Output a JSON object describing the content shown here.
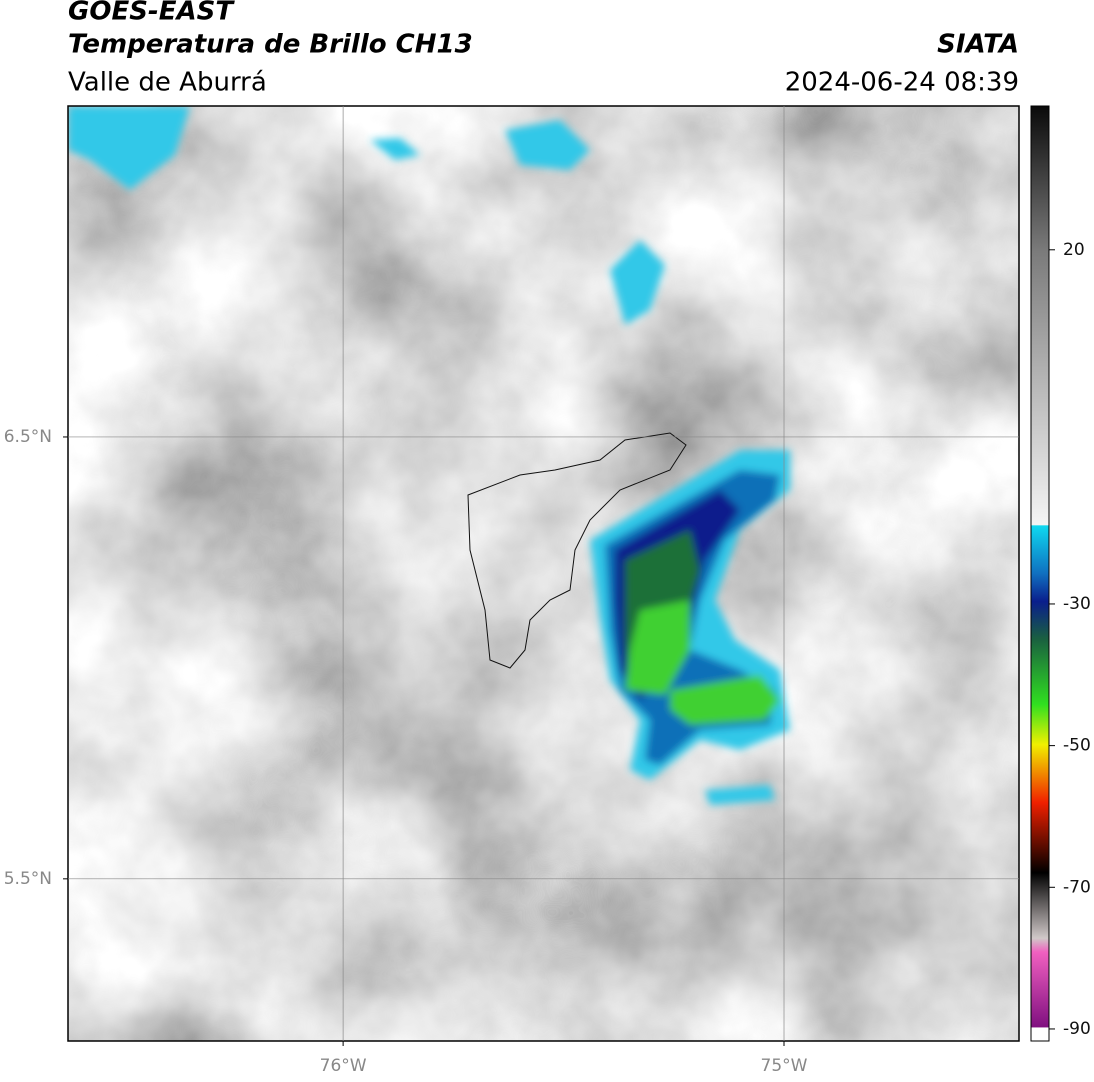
{
  "header": {
    "title": "GOES-EAST",
    "subtitle": "Temperatura de Brillo CH13",
    "region": "Valle de Aburrá",
    "source": "SIATA",
    "datetime": "2024-06-24 08:39"
  },
  "map": {
    "lonlim": [
      -76.624,
      -74.467
    ],
    "latlim": [
      5.133,
      7.249
    ],
    "lonticks": [
      {
        "value": -76,
        "label": "76°W"
      },
      {
        "value": -75,
        "label": "75°W"
      }
    ],
    "latticks": [
      {
        "value": 6.5,
        "label": "6.5°N"
      },
      {
        "value": 5.5,
        "label": "5.5°N"
      }
    ]
  },
  "colorbar": {
    "clim": [
      -91.7,
      40.3
    ],
    "ticks": [
      20,
      -30,
      -50,
      -70,
      -90
    ]
  }
}
